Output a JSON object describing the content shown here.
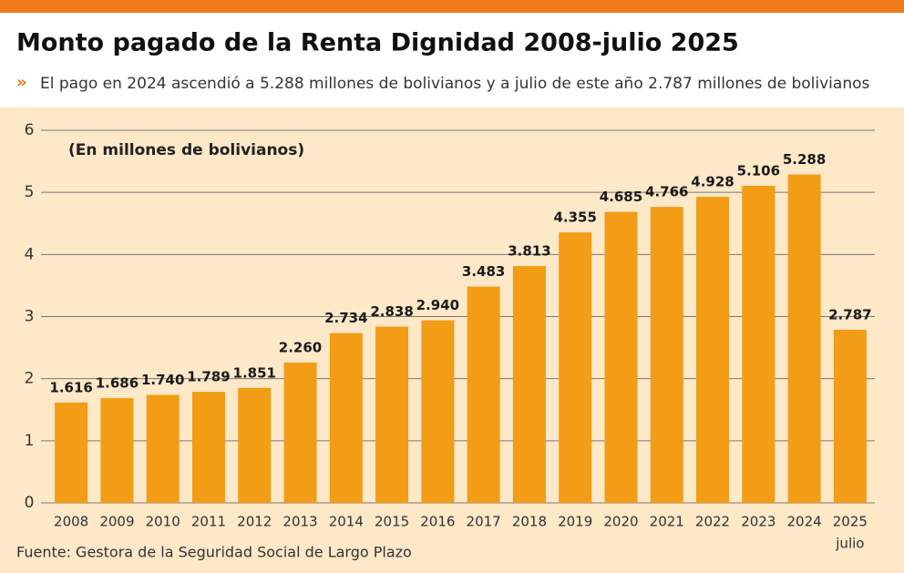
{
  "chart_data": {
    "type": "bar",
    "title": "Monto pagado de la Renta Dignidad 2008-julio 2025",
    "subtitle": "El pago en 2024 ascendió a 5.288 millones de bolivianos y a julio de este año 2.787 millones de bolivianos",
    "unit_note": "(En millones de bolivianos)",
    "source": "Fuente: Gestora de la Seguridad Social de Largo Plazo",
    "categories": [
      "2008",
      "2009",
      "2010",
      "2011",
      "2012",
      "2013",
      "2014",
      "2015",
      "2016",
      "2017",
      "2018",
      "2019",
      "2020",
      "2021",
      "2022",
      "2023",
      "2024",
      "2025"
    ],
    "category_note": "julio",
    "values": [
      1.616,
      1.686,
      1.74,
      1.789,
      1.851,
      2.26,
      2.734,
      2.838,
      2.94,
      3.483,
      3.813,
      4.355,
      4.685,
      4.766,
      4.928,
      5.106,
      5.288,
      2.787
    ],
    "value_labels": [
      "1.616",
      "1.686",
      "1.740",
      "1.789",
      "1.851",
      "2.260",
      "2.734",
      "2.838",
      "2.940",
      "3.483",
      "3.813",
      "4.355",
      "4.685",
      "4.766",
      "4.928",
      "5.106",
      "5.288",
      "2.787"
    ],
    "color": "#f39c16",
    "ylim": [
      0,
      6
    ],
    "yticks": [
      0,
      1,
      2,
      3,
      4,
      5,
      6
    ],
    "grid": true
  }
}
